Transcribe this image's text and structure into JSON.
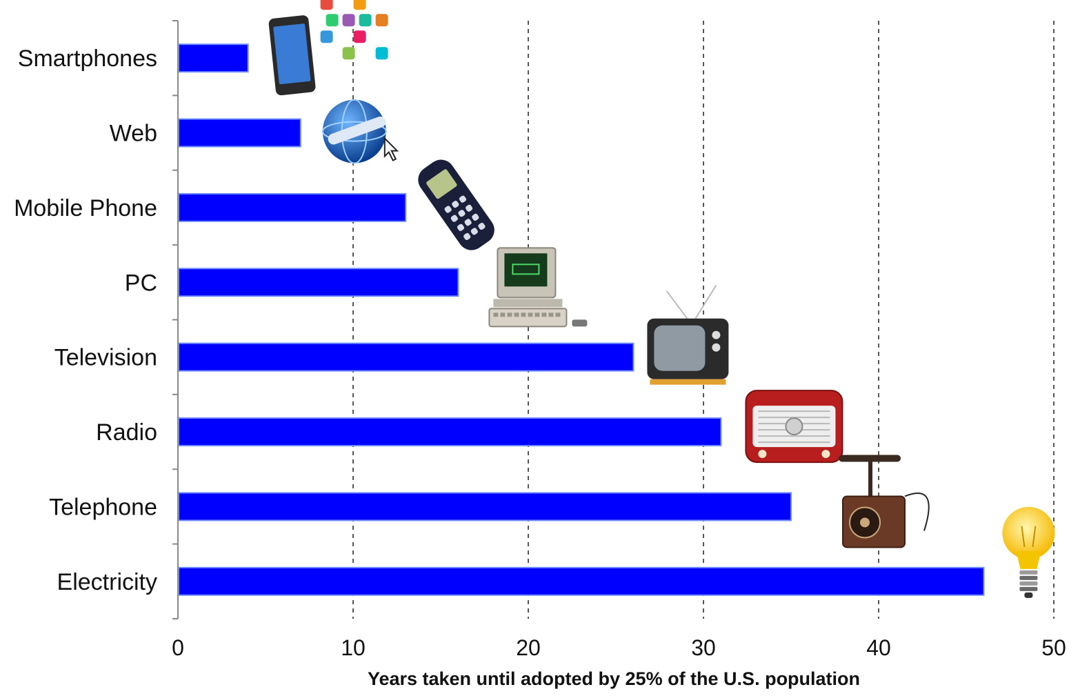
{
  "chart_data": {
    "type": "bar",
    "orientation": "horizontal",
    "categories": [
      "Smartphones",
      "Web",
      "Mobile Phone",
      "PC",
      "Television",
      "Radio",
      "Telephone",
      "Electricity"
    ],
    "values": [
      4,
      7,
      13,
      16,
      26,
      31,
      35,
      46
    ],
    "xlabel": "Years taken until  adopted by 25% of the U.S. population",
    "ylabel": "",
    "xlim": [
      0,
      50
    ],
    "xticks": [
      0,
      10,
      20,
      30,
      40,
      50
    ],
    "grid": "vertical dashed",
    "bar_color": "#0000ff",
    "icons": [
      "smartphone-apps-icon",
      "globe-web-icon",
      "mobile-phone-icon",
      "personal-computer-icon",
      "television-icon",
      "radio-icon",
      "telephone-icon",
      "light-bulb-icon"
    ]
  }
}
